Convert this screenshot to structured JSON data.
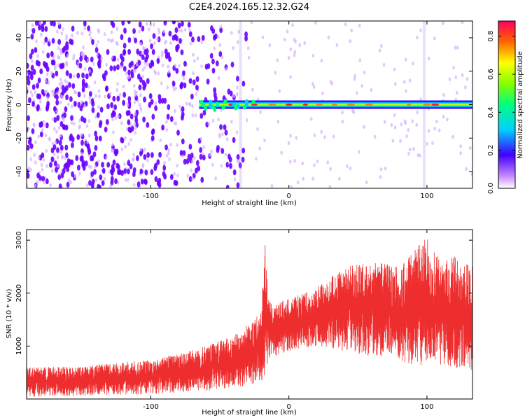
{
  "page": {
    "title": "C2E4.2024.165.12.32.G24"
  },
  "colorbar": {
    "label": "Normalized spectral amplitude",
    "range": [
      0.0,
      0.88
    ],
    "ticks": [
      "0.0",
      "0.2",
      "0.4",
      "0.6",
      "0.8"
    ],
    "tick_values": [
      0.0,
      0.2,
      0.4,
      0.6,
      0.8
    ]
  },
  "chart_data": [
    {
      "type": "heatmap",
      "title": "",
      "xlabel": "Height of straight line (km)",
      "ylabel": "Frequency (Hz)",
      "xlim": [
        -190,
        133
      ],
      "ylim": [
        -50,
        50
      ],
      "x_ticks": [
        "-100",
        "0",
        "100"
      ],
      "x_tick_values": [
        -100,
        0,
        100
      ],
      "y_ticks": [
        "-40",
        "-20",
        "0",
        "20",
        "40"
      ],
      "y_tick_values": [
        -40,
        -20,
        0,
        20,
        40
      ],
      "colormap": [
        "#ffffff",
        "#d9b3ff",
        "#7a00ff",
        "#0000ff",
        "#00ffff",
        "#00ff00",
        "#ffff00",
        "#ff8800",
        "#ff0000",
        "#ff0066"
      ],
      "signal_band": {
        "center_frequency": 0,
        "x_start": -65,
        "x_end": 133,
        "note": "Narrow high-amplitude band near 0 Hz"
      },
      "noise_region": {
        "x_start": -190,
        "x_end": -30,
        "dominant_color": "#6a00ff"
      }
    },
    {
      "type": "line",
      "title": "",
      "xlabel": "Height of straight line (km)",
      "ylabel": "SNR (10 * v/v)",
      "xlim": [
        -190,
        133
      ],
      "ylim": [
        0,
        3200
      ],
      "x_ticks": [
        "-100",
        "0",
        "100"
      ],
      "x_tick_values": [
        -100,
        0,
        100
      ],
      "y_ticks": [
        "1000",
        "2000",
        "3000"
      ],
      "y_tick_values": [
        1000,
        2000,
        3000
      ],
      "series": [
        {
          "color": "#ee2e2e",
          "envelope_x": [
            -190,
            -150,
            -120,
            -100,
            -80,
            -60,
            -40,
            -25,
            -20,
            -17,
            -15,
            -10,
            0,
            20,
            40,
            60,
            80,
            100,
            110,
            120,
            133
          ],
          "envelope_lower": [
            40,
            60,
            80,
            90,
            120,
            150,
            200,
            250,
            300,
            400,
            700,
            800,
            900,
            1000,
            900,
            800,
            700,
            600,
            650,
            600,
            500
          ],
          "envelope_upper": [
            600,
            620,
            700,
            750,
            850,
            1000,
            1200,
            1500,
            1700,
            3000,
            1900,
            1800,
            1900,
            2100,
            2500,
            2600,
            2500,
            3100,
            2600,
            2700,
            2500
          ]
        }
      ]
    }
  ]
}
